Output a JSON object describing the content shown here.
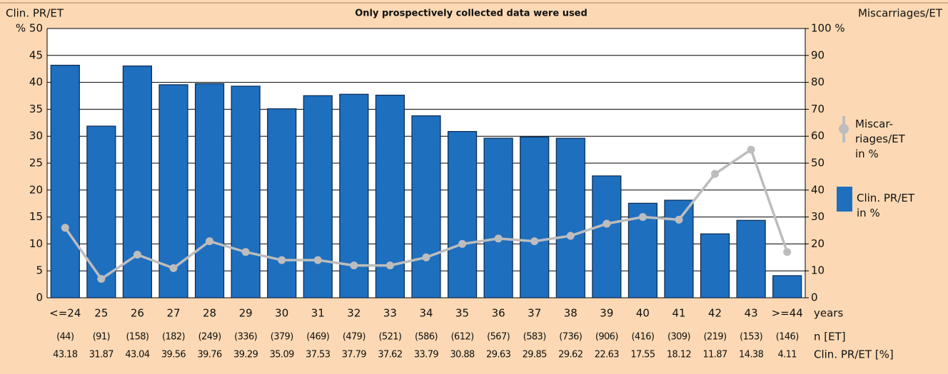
{
  "chart_data": {
    "type": "bar",
    "title": "Only prospectively collected data were used",
    "ylabel": "Clin. PR/ET",
    "y2label": "Miscarriages/ET",
    "xlabel": "years",
    "categories": [
      "<=24",
      "25",
      "26",
      "27",
      "28",
      "29",
      "30",
      "31",
      "32",
      "33",
      "34",
      "35",
      "36",
      "37",
      "38",
      "39",
      "40",
      "41",
      "42",
      "43",
      ">=44"
    ],
    "series": [
      {
        "name": "Clin. PR/ET\nin %",
        "type": "bar",
        "color": "#1f6fbf",
        "values": [
          43.18,
          31.87,
          43.04,
          39.56,
          39.76,
          39.29,
          35.09,
          37.53,
          37.79,
          37.62,
          33.79,
          30.88,
          29.63,
          29.85,
          29.62,
          22.63,
          17.55,
          18.12,
          11.87,
          14.38,
          4.11
        ]
      },
      {
        "name": "Miscar-\nriages/ET\nin %",
        "type": "line",
        "axis": "y2",
        "color": "#bdbdbd",
        "values": [
          26,
          7,
          16,
          11,
          21,
          17,
          14,
          14,
          12,
          12,
          15,
          20,
          22,
          21,
          23,
          27.5,
          30,
          29,
          46,
          55,
          17
        ]
      }
    ],
    "n_et": {
      "label": "n [ET]",
      "values": [
        44,
        91,
        158,
        182,
        249,
        336,
        379,
        469,
        479,
        521,
        586,
        612,
        567,
        583,
        736,
        906,
        416,
        309,
        219,
        153,
        146
      ],
      "value_labels": [
        "(44)",
        "(91)",
        "(158)",
        "(182)",
        "(249)",
        "(336)",
        "(379)",
        "(469)",
        "(479)",
        "(521)",
        "(586)",
        "(612)",
        "(567)",
        "(583)",
        "(736)",
        "(906)",
        "(416)",
        "(309)",
        "(219)",
        "(153)",
        "(146)"
      ]
    },
    "pr_row_label": "Clin. PR/ET  [%]",
    "ylim": [
      0,
      50
    ],
    "yticks": [
      0,
      5,
      10,
      15,
      20,
      25,
      30,
      35,
      40,
      45,
      {
        "value": 50,
        "label": "% 50"
      }
    ],
    "y2lim": [
      0,
      100
    ],
    "y2ticks": [
      0,
      10,
      20,
      30,
      40,
      50,
      60,
      70,
      80,
      90,
      {
        "value": 100,
        "label": "100 %"
      }
    ],
    "grid": true
  }
}
